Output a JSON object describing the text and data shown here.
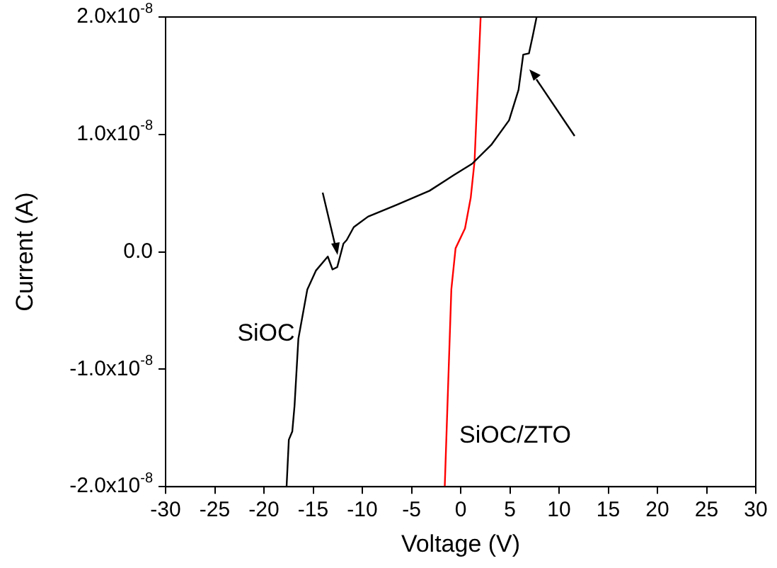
{
  "chart_data": {
    "type": "line",
    "xlabel": "Voltage (V)",
    "ylabel": "Current (A)",
    "xlim": [
      -30,
      30
    ],
    "xticks": [
      -30,
      -25,
      -20,
      -15,
      -10,
      -5,
      0,
      5,
      10,
      15,
      20,
      25,
      30
    ],
    "ylim": [
      -2e-08,
      2e-08
    ],
    "yticks": [
      {
        "value": -2e-08,
        "label": "-2.0x10$^{-8}$"
      },
      {
        "value": -1e-08,
        "label": "-1.0x10$^{-8}$"
      },
      {
        "value": 0,
        "label": "0.0"
      },
      {
        "value": 1e-08,
        "label": "1.0x10$^{-8}$"
      },
      {
        "value": 2e-08,
        "label": "2.0x10$^{-8}$"
      }
    ],
    "grid": false,
    "legend": false,
    "marker": "none",
    "line_style": "solid",
    "series": [
      {
        "name": "SiOC",
        "color": "#000000",
        "x": [
          -17.7,
          -17.47,
          -17.12,
          -16.89,
          -16.5,
          -15.59,
          -14.72,
          -13.51,
          -13.03,
          -12.55,
          -11.92,
          -11.59,
          -10.87,
          -9.42,
          -6.53,
          -3.17,
          -0.76,
          1.16,
          3.1,
          4.92,
          5.88,
          6.36,
          6.94,
          7.33,
          7.72
        ],
        "values": [
          -2e-08,
          -1.6e-08,
          -1.53e-08,
          -1.31e-08,
          -7.4e-09,
          -3.2e-09,
          -1.6e-09,
          -4e-10,
          -1.5e-09,
          -1.3e-09,
          7e-10,
          1e-09,
          2.1e-09,
          3e-09,
          4e-09,
          5.2e-09,
          6.5e-09,
          7.5e-09,
          9.1e-09,
          1.12e-08,
          1.38e-08,
          1.68e-08,
          1.69e-08,
          1.84e-08,
          2e-08
        ]
      },
      {
        "name": "SiOC/ZTO",
        "color": "#ff0000",
        "x": [
          -1.62,
          -0.95,
          -0.52,
          0.44,
          1.02,
          1.41,
          2.03
        ],
        "values": [
          -2e-08,
          -3.2e-09,
          3e-10,
          2e-09,
          4.6e-09,
          7.7e-09,
          2e-08
        ]
      }
    ]
  }
}
